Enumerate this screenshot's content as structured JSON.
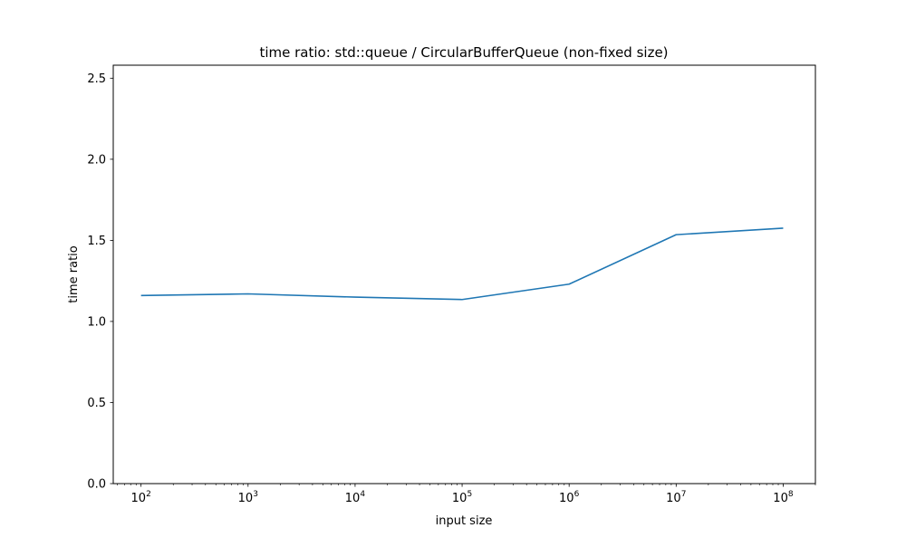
{
  "chart_data": {
    "type": "line",
    "title": "time ratio: std::queue / CircularBufferQueue (non-fixed size)",
    "xlabel": "input size",
    "ylabel": "time ratio",
    "x_scale": "log",
    "xlim": [
      55,
      200000000
    ],
    "ylim": [
      0,
      2.58
    ],
    "grid": false,
    "legend": "none",
    "x_ticks": [
      {
        "value": 100,
        "base": "10",
        "exp": "2"
      },
      {
        "value": 1000,
        "base": "10",
        "exp": "3"
      },
      {
        "value": 10000,
        "base": "10",
        "exp": "4"
      },
      {
        "value": 100000,
        "base": "10",
        "exp": "5"
      },
      {
        "value": 1000000,
        "base": "10",
        "exp": "6"
      },
      {
        "value": 10000000,
        "base": "10",
        "exp": "7"
      },
      {
        "value": 100000000,
        "base": "10",
        "exp": "8"
      }
    ],
    "y_ticks": [
      {
        "value": 0,
        "label": "0.0"
      },
      {
        "value": 0.5,
        "label": "0.5"
      },
      {
        "value": 1.0,
        "label": "1.0"
      },
      {
        "value": 1.5,
        "label": "1.5"
      },
      {
        "value": 2.0,
        "label": "2.0"
      },
      {
        "value": 2.5,
        "label": "2.5"
      }
    ],
    "series": [
      {
        "color": "#1f77b4",
        "x": [
          100,
          1000,
          10000,
          100000,
          1000000,
          10000000,
          100000000
        ],
        "y": [
          1.16,
          1.17,
          1.15,
          1.135,
          1.23,
          1.535,
          1.575
        ]
      }
    ]
  }
}
